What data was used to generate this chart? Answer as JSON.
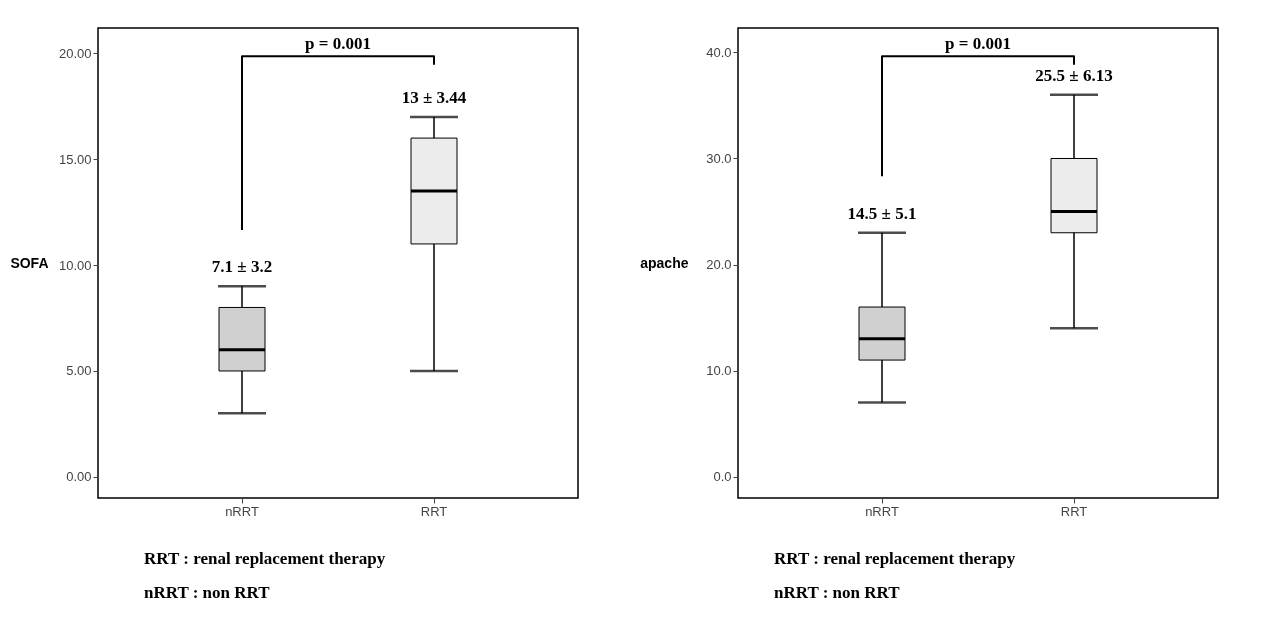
{
  "chart_data": [
    {
      "type": "box",
      "ylabel": "SOFA",
      "categories": [
        "nRRT",
        "RRT"
      ],
      "colors": [
        "#d0d0d0",
        "#ececec"
      ],
      "boxes": [
        {
          "low": 3,
          "q1": 5,
          "median": 6,
          "q3": 8,
          "high": 9
        },
        {
          "low": 5,
          "q1": 11,
          "median": 13.5,
          "q3": 16,
          "high": 17
        }
      ],
      "ylim": [
        -1,
        21.2
      ],
      "yticks": [
        {
          "value": 0,
          "label": "0.00"
        },
        {
          "value": 5,
          "label": "5.00"
        },
        {
          "value": 10,
          "label": "10.00"
        },
        {
          "value": 15,
          "label": "15.00"
        },
        {
          "value": 20,
          "label": "20.00"
        }
      ],
      "annotations": [
        "p = 0.001",
        "7.1 ± 3.2",
        "13 ± 3.44",
        "RRT : renal replacement therapy",
        "nRRT : non RRT"
      ]
    },
    {
      "type": "box",
      "ylabel": "apache",
      "categories": [
        "nRRT",
        "RRT"
      ],
      "colors": [
        "#d0d0d0",
        "#ececec"
      ],
      "boxes": [
        {
          "low": 7,
          "q1": 11,
          "median": 13,
          "q3": 16,
          "high": 23
        },
        {
          "low": 14,
          "q1": 23,
          "median": 25,
          "q3": 30,
          "high": 36
        }
      ],
      "ylim": [
        -2,
        42.3
      ],
      "yticks": [
        {
          "value": 0,
          "label": "0.0"
        },
        {
          "value": 10,
          "label": "10.0"
        },
        {
          "value": 20,
          "label": "20.0"
        },
        {
          "value": 30,
          "label": "30.0"
        },
        {
          "value": 40,
          "label": "40.0"
        }
      ],
      "annotations": [
        "p = 0.001",
        "14.5 ± 5.1",
        "25.5 ± 6.13",
        "RRT : renal replacement therapy",
        "nRRT : non RRT"
      ]
    }
  ]
}
